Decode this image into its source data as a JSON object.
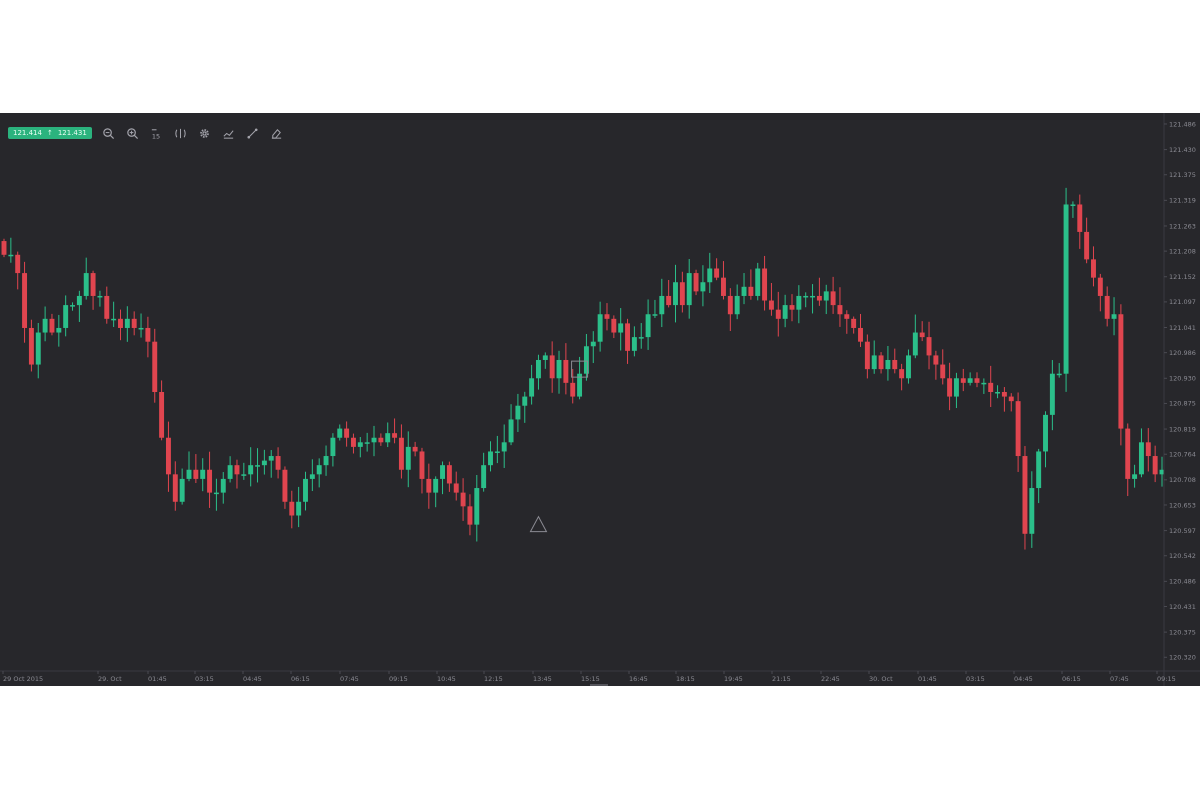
{
  "toolbar": {
    "bid": "121.414",
    "ask": "121.431",
    "tools": [
      {
        "name": "zoom-out-icon"
      },
      {
        "name": "zoom-in-icon"
      },
      {
        "name": "timeframe-icon",
        "label": "15"
      },
      {
        "name": "crosshair-icon"
      },
      {
        "name": "settings-icon"
      },
      {
        "name": "indicators-icon"
      },
      {
        "name": "draw-line-icon"
      },
      {
        "name": "eraser-icon"
      }
    ]
  },
  "colors": {
    "background": "#27272b",
    "up": "#2bbf8a",
    "down": "#e0454f",
    "axis_text": "#8b8b93"
  },
  "chart_data": {
    "type": "candlestick",
    "x_ticks": [
      "29 Oct 2015",
      "29. Oct",
      "01:45",
      "03:15",
      "04:45",
      "06:15",
      "07:45",
      "09:15",
      "10:45",
      "12:15",
      "13:45",
      "15:15",
      "16:45",
      "18:15",
      "19:45",
      "21:15",
      "22:45",
      "30. Oct",
      "01:45",
      "03:15",
      "04:45",
      "06:15",
      "07:45",
      "09:15"
    ],
    "y_ticks": [
      "121.486",
      "121.430",
      "121.375",
      "121.319",
      "121.263",
      "121.208",
      "121.152",
      "121.097",
      "121.041",
      "120.986",
      "120.930",
      "120.875",
      "120.819",
      "120.764",
      "120.708",
      "120.653",
      "120.597",
      "120.542",
      "120.486",
      "120.431",
      "120.375",
      "120.320"
    ],
    "ylim": [
      120.29,
      121.51
    ],
    "markers": [
      {
        "shape": "square",
        "x_index": 84,
        "y": 120.95
      },
      {
        "shape": "triangle",
        "x_index": 78,
        "y": 120.61
      }
    ],
    "closes": [
      121.2,
      121.2,
      121.16,
      121.04,
      120.96,
      121.03,
      121.06,
      121.03,
      121.04,
      121.09,
      121.09,
      121.11,
      121.16,
      121.11,
      121.11,
      121.06,
      121.06,
      121.04,
      121.06,
      121.04,
      121.04,
      121.01,
      120.9,
      120.8,
      120.72,
      120.66,
      120.71,
      120.73,
      120.71,
      120.73,
      120.68,
      120.68,
      120.71,
      120.74,
      120.72,
      120.72,
      120.74,
      120.74,
      120.75,
      120.76,
      120.73,
      120.66,
      120.63,
      120.66,
      120.71,
      120.72,
      120.74,
      120.76,
      120.8,
      120.82,
      120.8,
      120.78,
      120.79,
      120.79,
      120.8,
      120.79,
      120.81,
      120.8,
      120.73,
      120.78,
      120.77,
      120.71,
      120.68,
      120.71,
      120.74,
      120.7,
      120.68,
      120.65,
      120.61,
      120.69,
      120.74,
      120.77,
      120.77,
      120.79,
      120.84,
      120.87,
      120.89,
      120.93,
      120.97,
      120.98,
      120.93,
      120.97,
      120.92,
      120.89,
      120.94,
      121.0,
      121.01,
      121.07,
      121.06,
      121.03,
      121.05,
      120.99,
      121.02,
      121.02,
      121.07,
      121.07,
      121.11,
      121.09,
      121.14,
      121.09,
      121.16,
      121.12,
      121.14,
      121.17,
      121.15,
      121.11,
      121.07,
      121.11,
      121.13,
      121.11,
      121.17,
      121.1,
      121.08,
      121.06,
      121.09,
      121.08,
      121.11,
      121.11,
      121.11,
      121.1,
      121.12,
      121.09,
      121.07,
      121.06,
      121.04,
      121.01,
      120.95,
      120.98,
      120.95,
      120.97,
      120.95,
      120.93,
      120.98,
      121.03,
      121.02,
      120.98,
      120.96,
      120.93,
      120.89,
      120.93,
      120.92,
      120.93,
      120.92,
      120.92,
      120.9,
      120.9,
      120.89,
      120.88,
      120.76,
      120.59,
      120.69,
      120.77,
      120.85,
      120.94,
      120.94,
      121.31,
      121.31,
      121.25,
      121.19,
      121.15,
      121.11,
      121.06,
      121.07,
      120.82,
      120.71,
      120.72,
      120.79,
      120.76,
      120.72,
      120.73
    ]
  }
}
